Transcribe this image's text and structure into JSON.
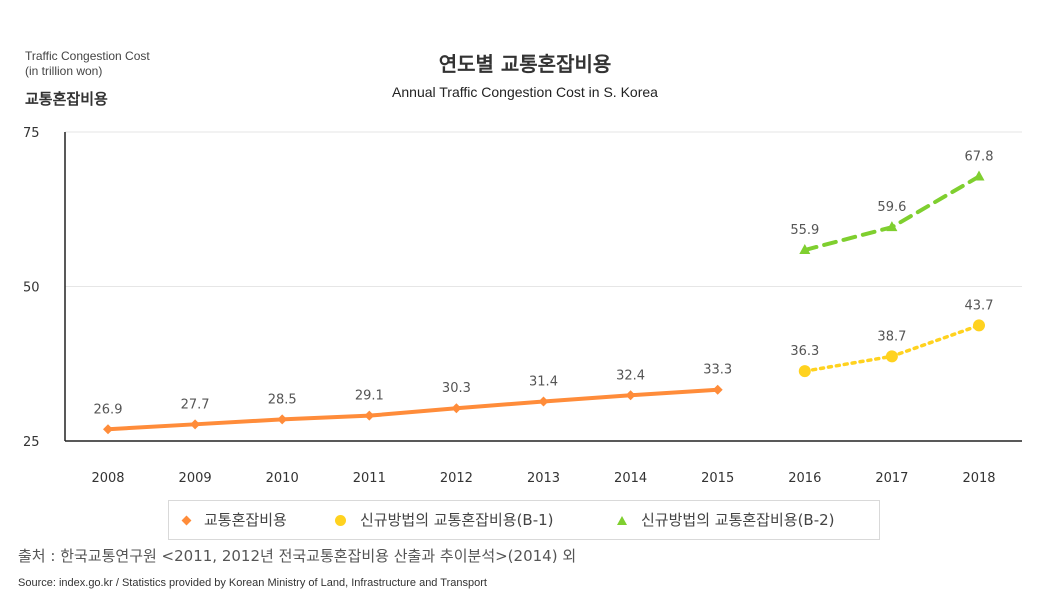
{
  "header": {
    "unit_label_line1": "Traffic Congestion Cost",
    "unit_label_line2": "(in trillion won)",
    "title_ko": "연도별 교통혼잡비용",
    "title_en": "Annual Traffic Congestion Cost in S. Korea"
  },
  "footer": {
    "source_ko": "출처 : 한국교통연구원 <2011, 2012년 전국교통혼잡비용 산출과 추이분석>(2014) 외",
    "source_en": "Source: index.go.kr / Statistics provided by Korean Ministry of Land, Infrastructure and Transport"
  },
  "chart_data": {
    "type": "line",
    "title": "연도별 교통혼잡비용",
    "subtitle": "Annual Traffic Congestion Cost in S. Korea",
    "ylabel": "교통혼잡비용",
    "xlabel": "",
    "ylim": [
      25,
      75
    ],
    "yticks": [
      "25",
      "50",
      "75"
    ],
    "categories": [
      "2008",
      "2009",
      "2010",
      "2011",
      "2012",
      "2013",
      "2014",
      "2015",
      "2016",
      "2017",
      "2018"
    ],
    "grid": true,
    "legend_position": "bottom",
    "series": [
      {
        "name": "교통혼잡비용",
        "color": "#ff8c3a",
        "marker": "diamond",
        "line_style": "solid",
        "x": [
          "2008",
          "2009",
          "2010",
          "2011",
          "2012",
          "2013",
          "2014",
          "2015"
        ],
        "values": [
          26.9,
          27.7,
          28.5,
          29.1,
          30.3,
          31.4,
          32.4,
          33.3
        ],
        "labels": [
          "26.9",
          "27.7",
          "28.5",
          "29.1",
          "30.3",
          "31.4",
          "32.4",
          "33.3"
        ]
      },
      {
        "name": "신규방법의 교통혼잡비용(B-1)",
        "color": "#ffd21f",
        "marker": "circle",
        "line_style": "dotted",
        "x": [
          "2016",
          "2017",
          "2018"
        ],
        "values": [
          36.3,
          38.7,
          43.7
        ],
        "labels": [
          "36.3",
          "38.7",
          "43.7"
        ]
      },
      {
        "name": "신규방법의 교통혼잡비용(B-2)",
        "color": "#7fcf2f",
        "marker": "triangle",
        "line_style": "dashed",
        "x": [
          "2016",
          "2017",
          "2018"
        ],
        "values": [
          55.9,
          59.6,
          67.8
        ],
        "labels": [
          "55.9",
          "59.6",
          "67.8"
        ]
      }
    ]
  }
}
